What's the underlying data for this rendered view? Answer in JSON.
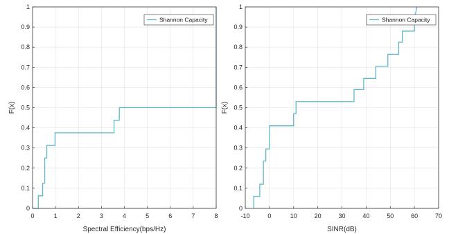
{
  "chart_data": [
    {
      "type": "line",
      "xlabel": "Spectral Efficiency(bps/Hz)",
      "ylabel": "F(x)",
      "xlim": [
        0,
        8
      ],
      "ylim": [
        0,
        1
      ],
      "xticks": [
        "0",
        "1",
        "2",
        "3",
        "4",
        "5",
        "6",
        "7",
        "8"
      ],
      "yticks": [
        "0",
        "0.1",
        "0.2",
        "0.3",
        "0.4",
        "0.5",
        "0.6",
        "0.7",
        "0.8",
        "0.9",
        "1"
      ],
      "grid": true,
      "legend_position": "top-right",
      "series": [
        {
          "name": "Shannon Capacity",
          "color": "#5fb7c9",
          "style": "step",
          "x": [
            0,
            0.25,
            0.25,
            0.44,
            0.44,
            0.53,
            0.53,
            0.62,
            0.62,
            0.98,
            0.98,
            3.55,
            3.55,
            3.78,
            3.78,
            8.0,
            8.0
          ],
          "y": [
            0,
            0,
            0.0625,
            0.0625,
            0.125,
            0.125,
            0.25,
            0.25,
            0.3125,
            0.3125,
            0.375,
            0.375,
            0.4375,
            0.4375,
            0.5,
            0.5,
            1.0
          ]
        }
      ]
    },
    {
      "type": "line",
      "xlabel": "SINR(dB)",
      "ylabel": "F(x)",
      "xlim": [
        -10,
        70
      ],
      "ylim": [
        0,
        1
      ],
      "xticks": [
        "-10",
        "0",
        "10",
        "20",
        "30",
        "40",
        "50",
        "60",
        "70"
      ],
      "yticks": [
        "0",
        "0.1",
        "0.2",
        "0.3",
        "0.4",
        "0.5",
        "0.6",
        "0.7",
        "0.8",
        "0.9",
        "1"
      ],
      "grid": true,
      "legend_position": "top-right",
      "series": [
        {
          "name": "Shannon Capacity",
          "color": "#5fb7c9",
          "style": "step",
          "x": [
            -6.5,
            -6.5,
            -4,
            -4,
            -2.5,
            -2.5,
            -1.5,
            -1.5,
            0,
            0,
            10,
            10,
            11,
            11,
            35,
            35,
            39,
            39,
            44,
            44,
            49,
            49,
            53.5,
            53.5,
            55,
            55,
            60,
            60,
            61
          ],
          "y": [
            0,
            0.06,
            0.06,
            0.12,
            0.12,
            0.235,
            0.235,
            0.295,
            0.295,
            0.41,
            0.41,
            0.47,
            0.47,
            0.53,
            0.53,
            0.59,
            0.59,
            0.645,
            0.645,
            0.705,
            0.705,
            0.765,
            0.765,
            0.825,
            0.825,
            0.88,
            0.88,
            0.94,
            1.0
          ]
        }
      ]
    }
  ]
}
